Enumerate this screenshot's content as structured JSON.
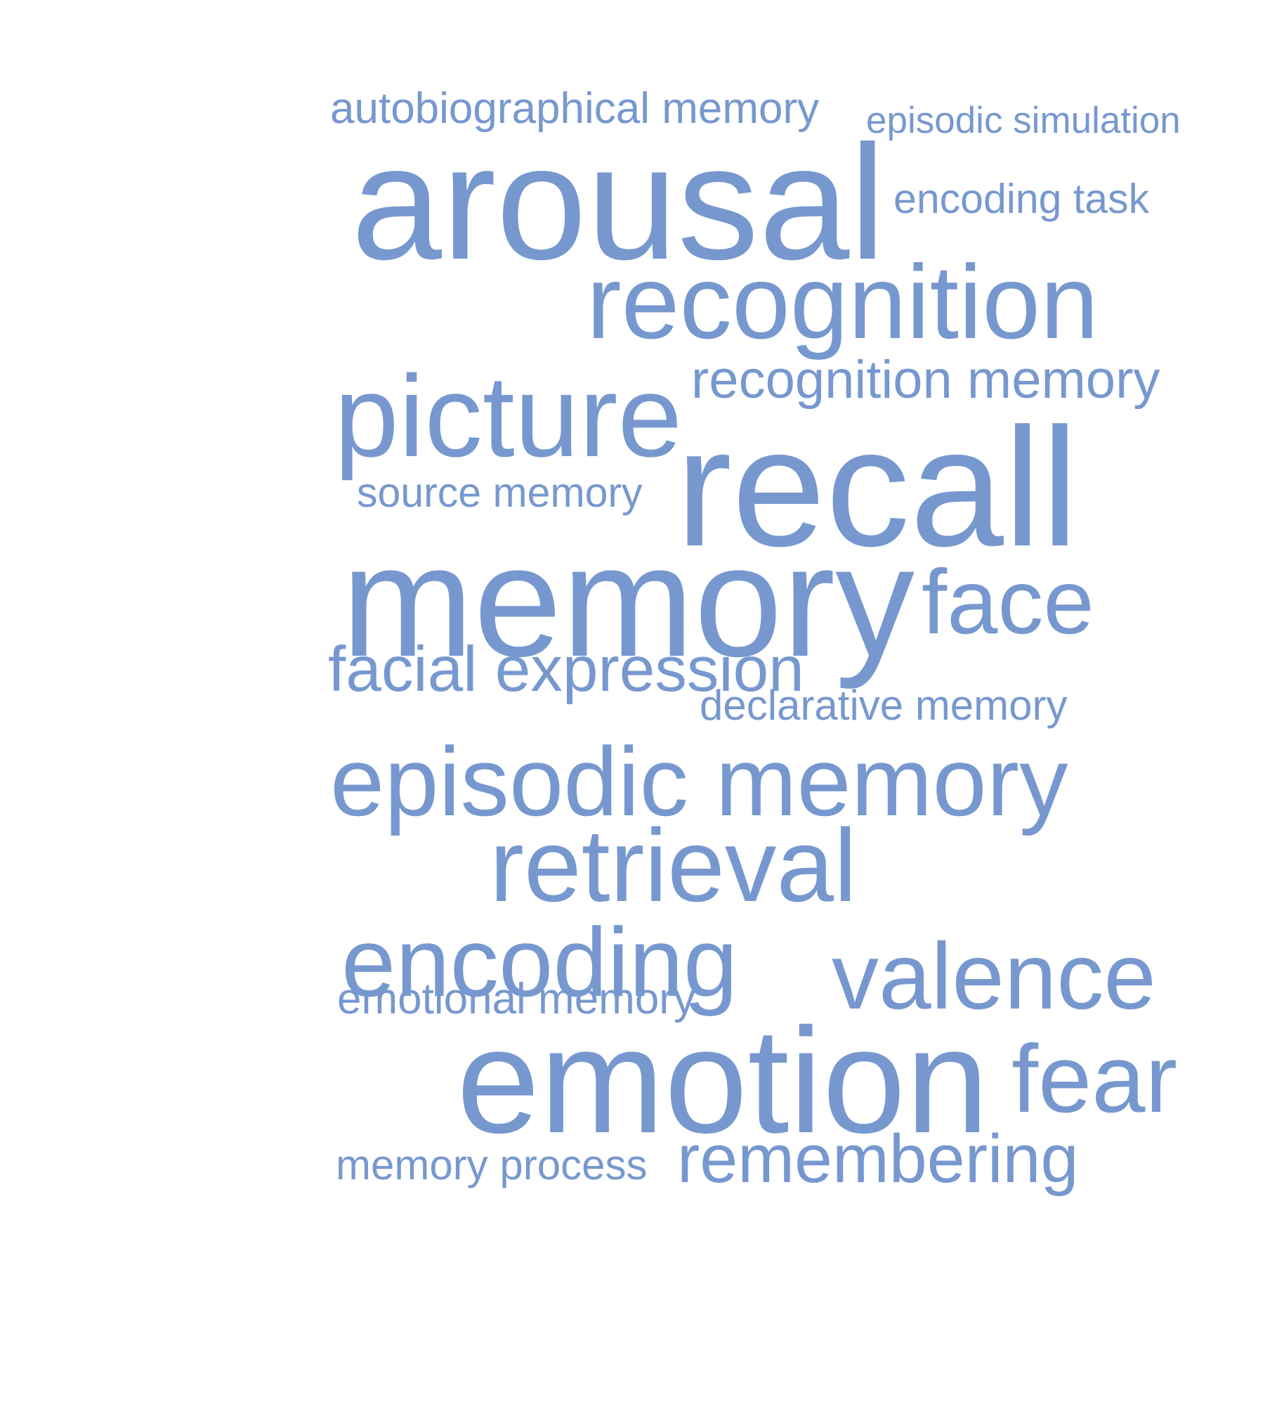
{
  "color": "#7798cf",
  "words": {
    "autobiographical_memory": "autobiographical memory",
    "episodic_simulation": "episodic simulation",
    "arousal": "arousal",
    "encoding_task": "encoding task",
    "recognition": "recognition",
    "recognition_memory": "recognition memory",
    "picture": "picture",
    "source_memory": "source memory",
    "recall": "recall",
    "memory": "memory",
    "face": "face",
    "facial_expression": "facial expression",
    "declarative_memory": "declarative memory",
    "episodic_memory": "episodic memory",
    "retrieval": "retrieval",
    "encoding": "encoding",
    "valence": "valence",
    "emotional_memory": "emotional memory",
    "emotion": "emotion",
    "fear": "fear",
    "memory_process": "memory process",
    "remembering": "remembering"
  }
}
